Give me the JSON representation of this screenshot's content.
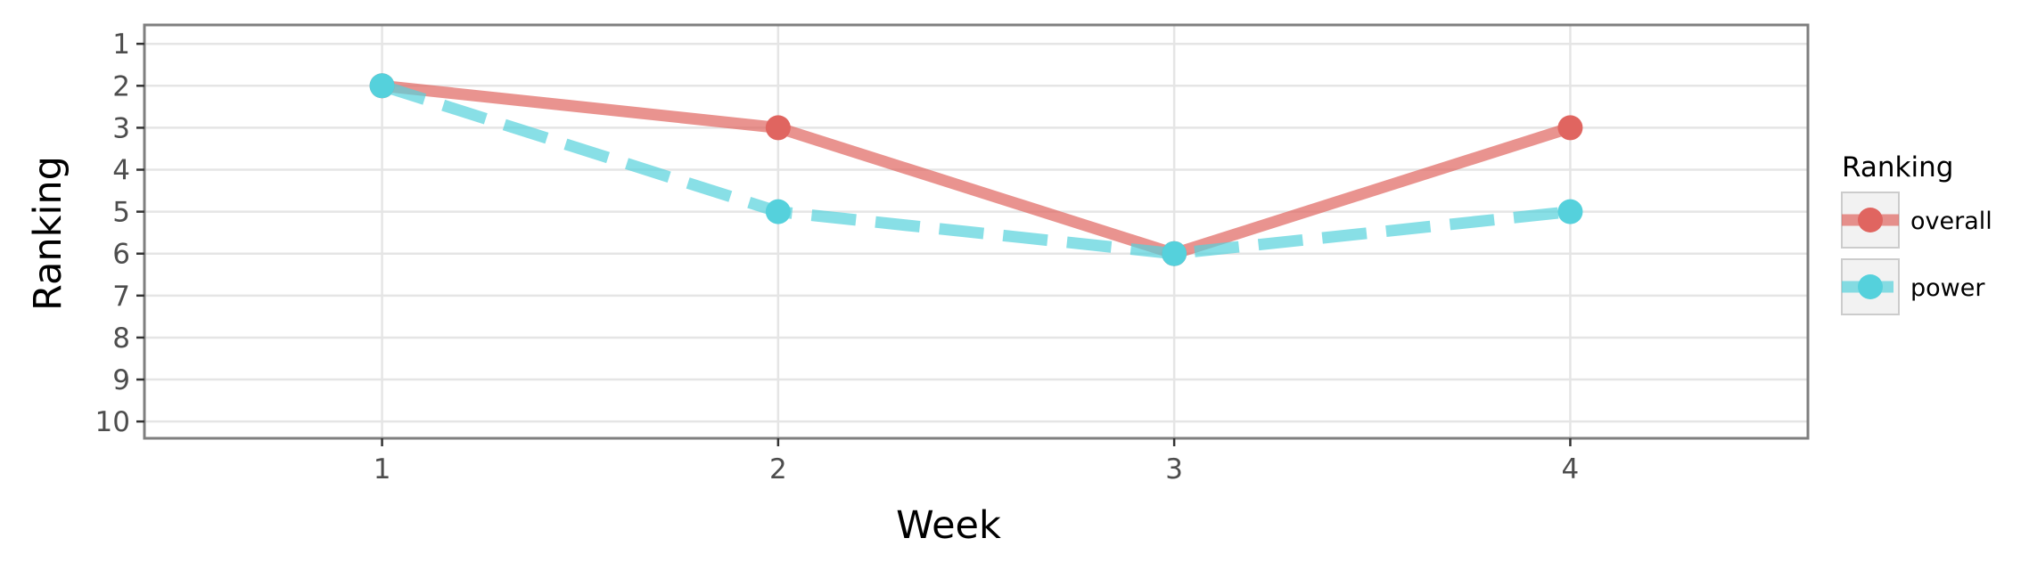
{
  "chart_data": {
    "type": "line",
    "xlabel": "Week",
    "ylabel": "Ranking",
    "x": [
      1,
      2,
      3,
      4
    ],
    "x_ticks": [
      "1",
      "2",
      "3",
      "4"
    ],
    "y_ticks": [
      "1",
      "2",
      "3",
      "4",
      "5",
      "6",
      "7",
      "8",
      "9",
      "10"
    ],
    "xlim": [
      0.4,
      4.6
    ],
    "ylim": [
      10.4,
      0.55
    ],
    "y_reversed": true,
    "grid": true,
    "legend": {
      "title": "Ranking",
      "position": "right",
      "entries": [
        "overall",
        "power"
      ]
    },
    "series": [
      {
        "name": "overall",
        "values": [
          2,
          3,
          6,
          3
        ],
        "color": "#e06560",
        "line_style": "solid"
      },
      {
        "name": "power",
        "values": [
          2,
          5,
          6,
          5
        ],
        "color": "#55d1dc",
        "line_style": "dashed"
      }
    ]
  }
}
